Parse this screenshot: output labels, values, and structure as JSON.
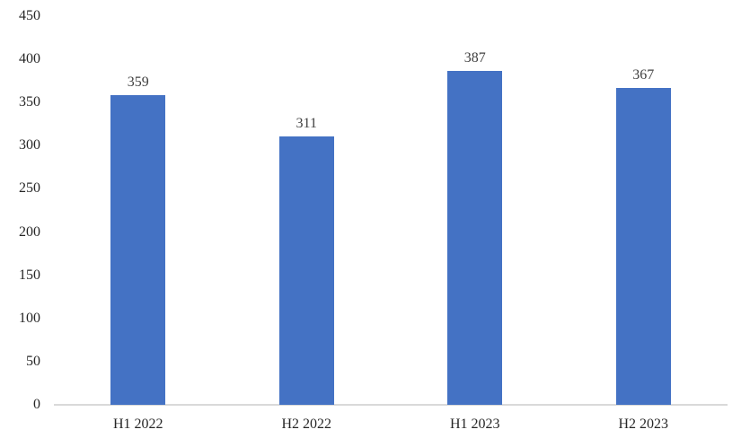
{
  "chart_data": {
    "type": "bar",
    "title": "",
    "xlabel": "",
    "ylabel": "",
    "categories": [
      "H1 2022",
      "H2 2022",
      "H1 2023",
      "H2 2023"
    ],
    "values": [
      359,
      311,
      387,
      367
    ],
    "data_labels": [
      "359",
      "311",
      "387",
      "367"
    ],
    "ylim": [
      0,
      450
    ],
    "ytick_step": 50,
    "ytick_labels": [
      "0",
      "50",
      "100",
      "150",
      "200",
      "250",
      "300",
      "350",
      "400",
      "450"
    ],
    "grid": false,
    "legend": "none",
    "bar_color": "#4472c4",
    "axis_line_color": "#d9d9d9",
    "data_label_color": "#404040",
    "tick_label_color": "#262626",
    "background_color": "#ffffff"
  }
}
